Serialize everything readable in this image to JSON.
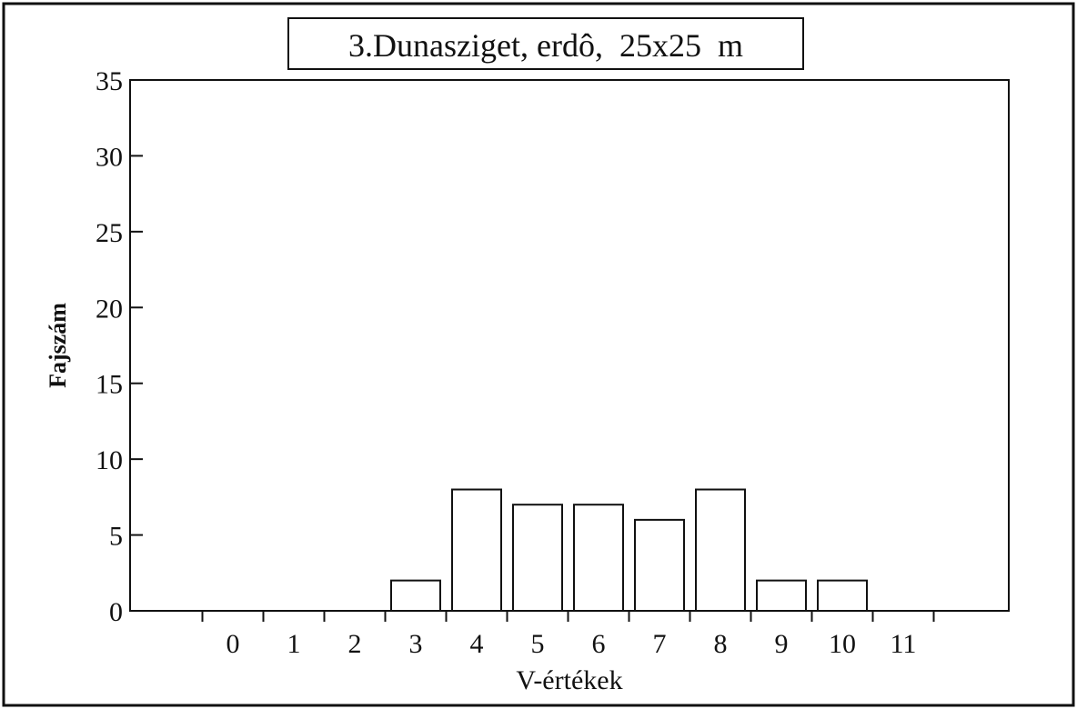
{
  "chart_data": {
    "type": "bar",
    "title": "3.Dunasziget, erdô,  25x25  m",
    "xlabel": "V-értékek",
    "ylabel": "Fajszám",
    "categories": [
      "0",
      "1",
      "2",
      "3",
      "4",
      "5",
      "6",
      "7",
      "8",
      "9",
      "10",
      "11"
    ],
    "values": [
      0,
      0,
      0,
      2,
      8,
      7,
      7,
      6,
      8,
      2,
      2,
      0
    ],
    "ylim": [
      0,
      35
    ],
    "yticks": [
      "0",
      "5",
      "10",
      "15",
      "20",
      "25",
      "30",
      "35"
    ],
    "grid": false,
    "legend": "none"
  }
}
